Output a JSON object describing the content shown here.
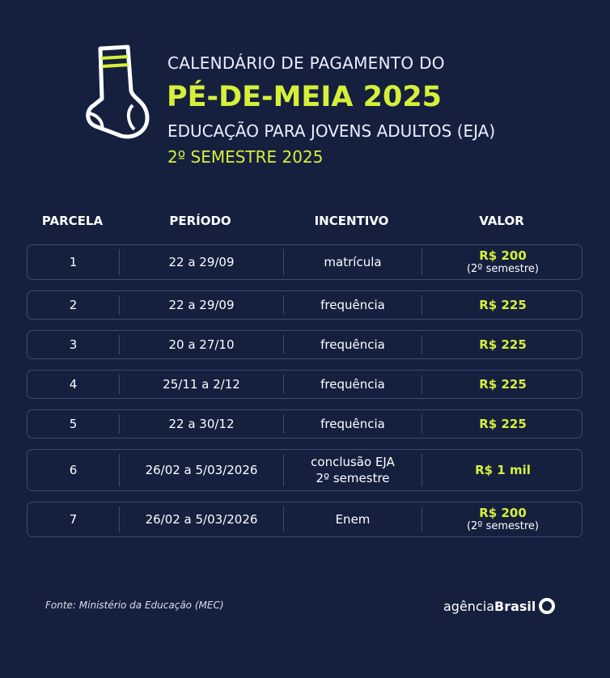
{
  "header": {
    "line1": "CALENDÁRIO DE PAGAMENTO DO",
    "title": "PÉ-DE-MEIA 2025",
    "line3": "EDUCAÇÃO PARA JOVENS ADULTOS (EJA)",
    "line4": "2º SEMESTRE 2025"
  },
  "table": {
    "columns": [
      "PARCELA",
      "PERÍODO",
      "INCENTIVO",
      "VALOR"
    ],
    "rows": [
      {
        "parcela": "1",
        "periodo": "22 a 29/09",
        "incentivo": [
          "matrícula"
        ],
        "valor": "R$ 200",
        "nota": "(2º semestre)"
      },
      {
        "parcela": "2",
        "periodo": "22 a 29/09",
        "incentivo": [
          "frequência"
        ],
        "valor": "R$ 225"
      },
      {
        "parcela": "3",
        "periodo": "20 a 27/10",
        "incentivo": [
          "frequência"
        ],
        "valor": "R$ 225"
      },
      {
        "parcela": "4",
        "periodo": "25/11 a 2/12",
        "incentivo": [
          "frequência"
        ],
        "valor": "R$ 225"
      },
      {
        "parcela": "5",
        "periodo": "22 a 30/12",
        "incentivo": [
          "frequência"
        ],
        "valor": "R$ 225"
      },
      {
        "parcela": "6",
        "periodo": "26/02 a 5/03/2026",
        "incentivo": [
          "conclusão EJA",
          "2º semestre"
        ],
        "valor": "R$ 1 mil"
      },
      {
        "parcela": "7",
        "periodo": "26/02 a 5/03/2026",
        "incentivo": [
          "Enem"
        ],
        "valor": "R$ 200",
        "nota": "(2º semestre)"
      }
    ]
  },
  "footer": {
    "source": "Fonte: Ministério da Educação (MEC)",
    "logo_light": "agência",
    "logo_bold": "Brasil"
  }
}
